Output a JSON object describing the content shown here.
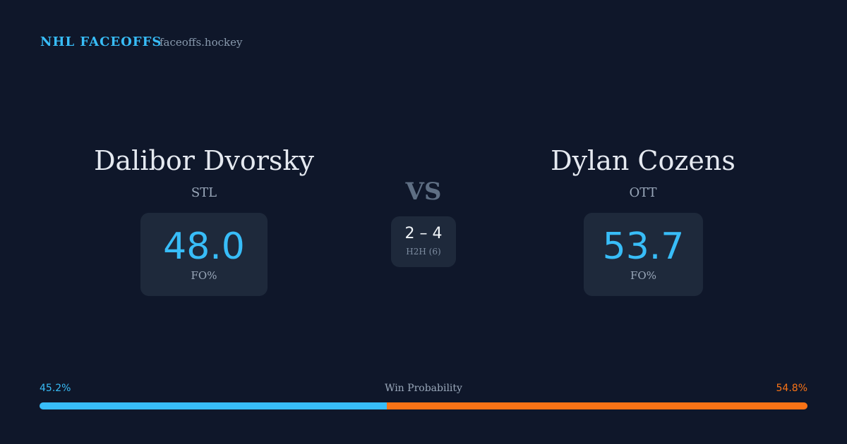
{
  "header": {
    "brand": "NHL FACEOFFS",
    "site": "faceoffs.hockey"
  },
  "players": [
    {
      "name": "Dalibor Dvorsky",
      "team": "STL",
      "fo_pct": "48.0",
      "fo_label": "FO%"
    },
    {
      "name": "Dylan Cozens",
      "team": "OTT",
      "fo_pct": "53.7",
      "fo_label": "FO%"
    }
  ],
  "vs": "VS",
  "h2h": {
    "score": "2 – 4",
    "label": "H2H (6)"
  },
  "win_probability": {
    "label": "Win Probability",
    "values": [
      45.2,
      54.8
    ],
    "value_labels": [
      "45.2%",
      "54.8%"
    ]
  }
}
